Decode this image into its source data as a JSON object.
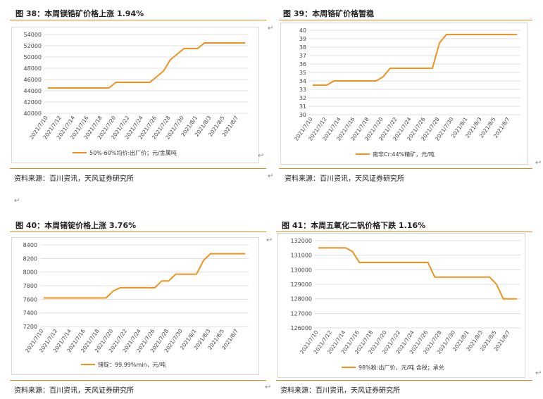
{
  "panels": [
    {
      "title": "图 38：本周镁锆矿价格上涨 1.94%",
      "source": "资料来源：百川资讯，天风证券研究所",
      "chart_data": {
        "type": "line",
        "categories": [
          "2021/7/10",
          "2021/7/11",
          "2021/7/12",
          "2021/7/13",
          "2021/7/14",
          "2021/7/15",
          "2021/7/16",
          "2021/7/17",
          "2021/7/18",
          "2021/7/19",
          "2021/7/20",
          "2021/7/21",
          "2021/7/22",
          "2021/7/23",
          "2021/7/24",
          "2021/7/25",
          "2021/7/26",
          "2021/7/27",
          "2021/7/28",
          "2021/7/29",
          "2021/7/30",
          "2021/7/31",
          "2021/8/1",
          "2021/8/2",
          "2021/8/3",
          "2021/8/4",
          "2021/8/5",
          "2021/8/6",
          "2021/8/7",
          "2021/8/8"
        ],
        "tick_labels": [
          "2021/7/10",
          "2021/7/12",
          "2021/7/14",
          "2021/7/16",
          "2021/7/18",
          "2021/7/20",
          "2021/7/22",
          "2021/7/24",
          "2021/7/26",
          "2021/7/28",
          "2021/7/30",
          "2021/8/1",
          "2021/8/3",
          "2021/8/5",
          "2021/8/7"
        ],
        "series": [
          {
            "name": "50%-60%均价:出厂价；元/金属吨",
            "values": [
              44500,
              44500,
              44500,
              44500,
              44500,
              44500,
              44500,
              44500,
              44500,
              44500,
              45500,
              45500,
              45500,
              45500,
              45500,
              45500,
              46500,
              47500,
              49500,
              50500,
              51500,
              51500,
              51500,
              52500,
              52500,
              52500,
              52500,
              52500,
              52500,
              52500
            ]
          }
        ],
        "yticks": [
          40000,
          42000,
          44000,
          46000,
          48000,
          50000,
          52000,
          54000
        ],
        "ylim": [
          40000,
          54000
        ]
      }
    },
    {
      "title": "图 39：本周铬矿价格暂稳",
      "source": "资料来源：百川资讯，天风证券研究所",
      "chart_data": {
        "type": "line",
        "categories": [
          "2021/7/10",
          "2021/7/11",
          "2021/7/12",
          "2021/7/13",
          "2021/7/14",
          "2021/7/15",
          "2021/7/16",
          "2021/7/17",
          "2021/7/18",
          "2021/7/19",
          "2021/7/20",
          "2021/7/21",
          "2021/7/22",
          "2021/7/23",
          "2021/7/24",
          "2021/7/25",
          "2021/7/26",
          "2021/7/27",
          "2021/7/28",
          "2021/7/29",
          "2021/7/30",
          "2021/7/31",
          "2021/8/1",
          "2021/8/2",
          "2021/8/3",
          "2021/8/4",
          "2021/8/5",
          "2021/8/6",
          "2021/8/7",
          "2021/8/8"
        ],
        "tick_labels": [
          "2021/7/10",
          "2021/7/12",
          "2021/7/14",
          "2021/7/16",
          "2021/7/18",
          "2021/7/20",
          "2021/7/22",
          "2021/7/24",
          "2021/7/26",
          "2021/7/28",
          "2021/7/30",
          "2021/8/1",
          "2021/8/3",
          "2021/8/5",
          "2021/8/7"
        ],
        "series": [
          {
            "name": "南非Cr:44%精矿，元/吨",
            "values": [
              33.5,
              33.5,
              33.5,
              34,
              34,
              34,
              34,
              34,
              34,
              34,
              34.5,
              35.5,
              35.5,
              35.5,
              35.5,
              35.5,
              35.5,
              35.5,
              38.5,
              39.5,
              39.5,
              39.5,
              39.5,
              39.5,
              39.5,
              39.5,
              39.5,
              39.5,
              39.5,
              39.5
            ]
          }
        ],
        "yticks": [
          30,
          31,
          32,
          33,
          34,
          35,
          36,
          37,
          38,
          39,
          40
        ],
        "ylim": [
          30,
          40
        ]
      }
    },
    {
      "title": "图 40：本周锗锭价格上涨 3.76%",
      "source": "资料来源：百川资讯，天风证券研究所",
      "chart_data": {
        "type": "line",
        "categories": [
          "2021/7/10",
          "2021/7/11",
          "2021/7/12",
          "2021/7/13",
          "2021/7/14",
          "2021/7/15",
          "2021/7/16",
          "2021/7/17",
          "2021/7/18",
          "2021/7/19",
          "2021/7/20",
          "2021/7/21",
          "2021/7/22",
          "2021/7/23",
          "2021/7/24",
          "2021/7/25",
          "2021/7/26",
          "2021/7/27",
          "2021/7/28",
          "2021/7/29",
          "2021/7/30",
          "2021/7/31",
          "2021/8/1",
          "2021/8/2",
          "2021/8/3",
          "2021/8/4",
          "2021/8/5",
          "2021/8/6",
          "2021/8/7",
          "2021/8/8"
        ],
        "tick_labels": [
          "2021/7/10",
          "2021/7/12",
          "2021/7/14",
          "2021/7/16",
          "2021/7/18",
          "2021/7/20",
          "2021/7/22",
          "2021/7/24",
          "2021/7/26",
          "2021/7/28",
          "2021/7/30",
          "2021/8/1",
          "2021/8/3",
          "2021/8/5",
          "2021/8/7"
        ],
        "series": [
          {
            "name": "锗锭：99.99%min，元/吨",
            "values": [
              7620,
              7620,
              7620,
              7620,
              7620,
              7620,
              7620,
              7620,
              7620,
              7620,
              7720,
              7770,
              7770,
              7770,
              7770,
              7770,
              7770,
              7870,
              7870,
              7970,
              7970,
              7970,
              7970,
              8170,
              8270,
              8270,
              8270,
              8270,
              8270,
              8270
            ]
          }
        ],
        "yticks": [
          7200,
          7400,
          7600,
          7800,
          8000,
          8200,
          8400
        ],
        "ylim": [
          7200,
          8400
        ]
      }
    },
    {
      "title": "图 41：本周五氧化二钒价格下跌 1.16%",
      "source": "资料来源：百川资讯，天风证券研究所",
      "chart_data": {
        "type": "line",
        "categories": [
          "2021/7/10",
          "2021/7/11",
          "2021/7/12",
          "2021/7/13",
          "2021/7/14",
          "2021/7/15",
          "2021/7/16",
          "2021/7/17",
          "2021/7/18",
          "2021/7/19",
          "2021/7/20",
          "2021/7/21",
          "2021/7/22",
          "2021/7/23",
          "2021/7/24",
          "2021/7/25",
          "2021/7/26",
          "2021/7/27",
          "2021/7/28",
          "2021/7/29",
          "2021/7/30",
          "2021/7/31",
          "2021/8/1",
          "2021/8/2",
          "2021/8/3",
          "2021/8/4",
          "2021/8/5",
          "2021/8/6",
          "2021/8/7",
          "2021/8/8"
        ],
        "tick_labels": [
          "2021/7/10",
          "2021/7/12",
          "2021/7/14",
          "2021/7/16",
          "2021/7/18",
          "2021/7/20",
          "2021/7/22",
          "2021/7/24",
          "2021/7/26",
          "2021/7/28",
          "2021/7/30",
          "2021/8/1",
          "2021/8/3",
          "2021/8/5",
          "2021/8/7"
        ],
        "series": [
          {
            "name": "98%粉:出厂价，元/吨 含税；承兑",
            "values": [
              131500,
              131500,
              131500,
              131500,
              131500,
              131250,
              130500,
              130500,
              130500,
              130500,
              130500,
              130500,
              130500,
              130500,
              130500,
              130500,
              130500,
              129500,
              129500,
              129500,
              129500,
              129500,
              129500,
              129500,
              129500,
              129500,
              129000,
              128000,
              128000,
              128000
            ]
          }
        ],
        "yticks": [
          126000,
          127000,
          128000,
          129000,
          130000,
          131000,
          132000
        ],
        "ylim": [
          126000,
          132000
        ]
      }
    }
  ],
  "style": {
    "line_color": "#f0921e",
    "grid_color": "#d9d9d9",
    "rule_color": "#e88a1a"
  },
  "marks": {
    "return_mark": "↵",
    "fold_mark": "↩"
  }
}
